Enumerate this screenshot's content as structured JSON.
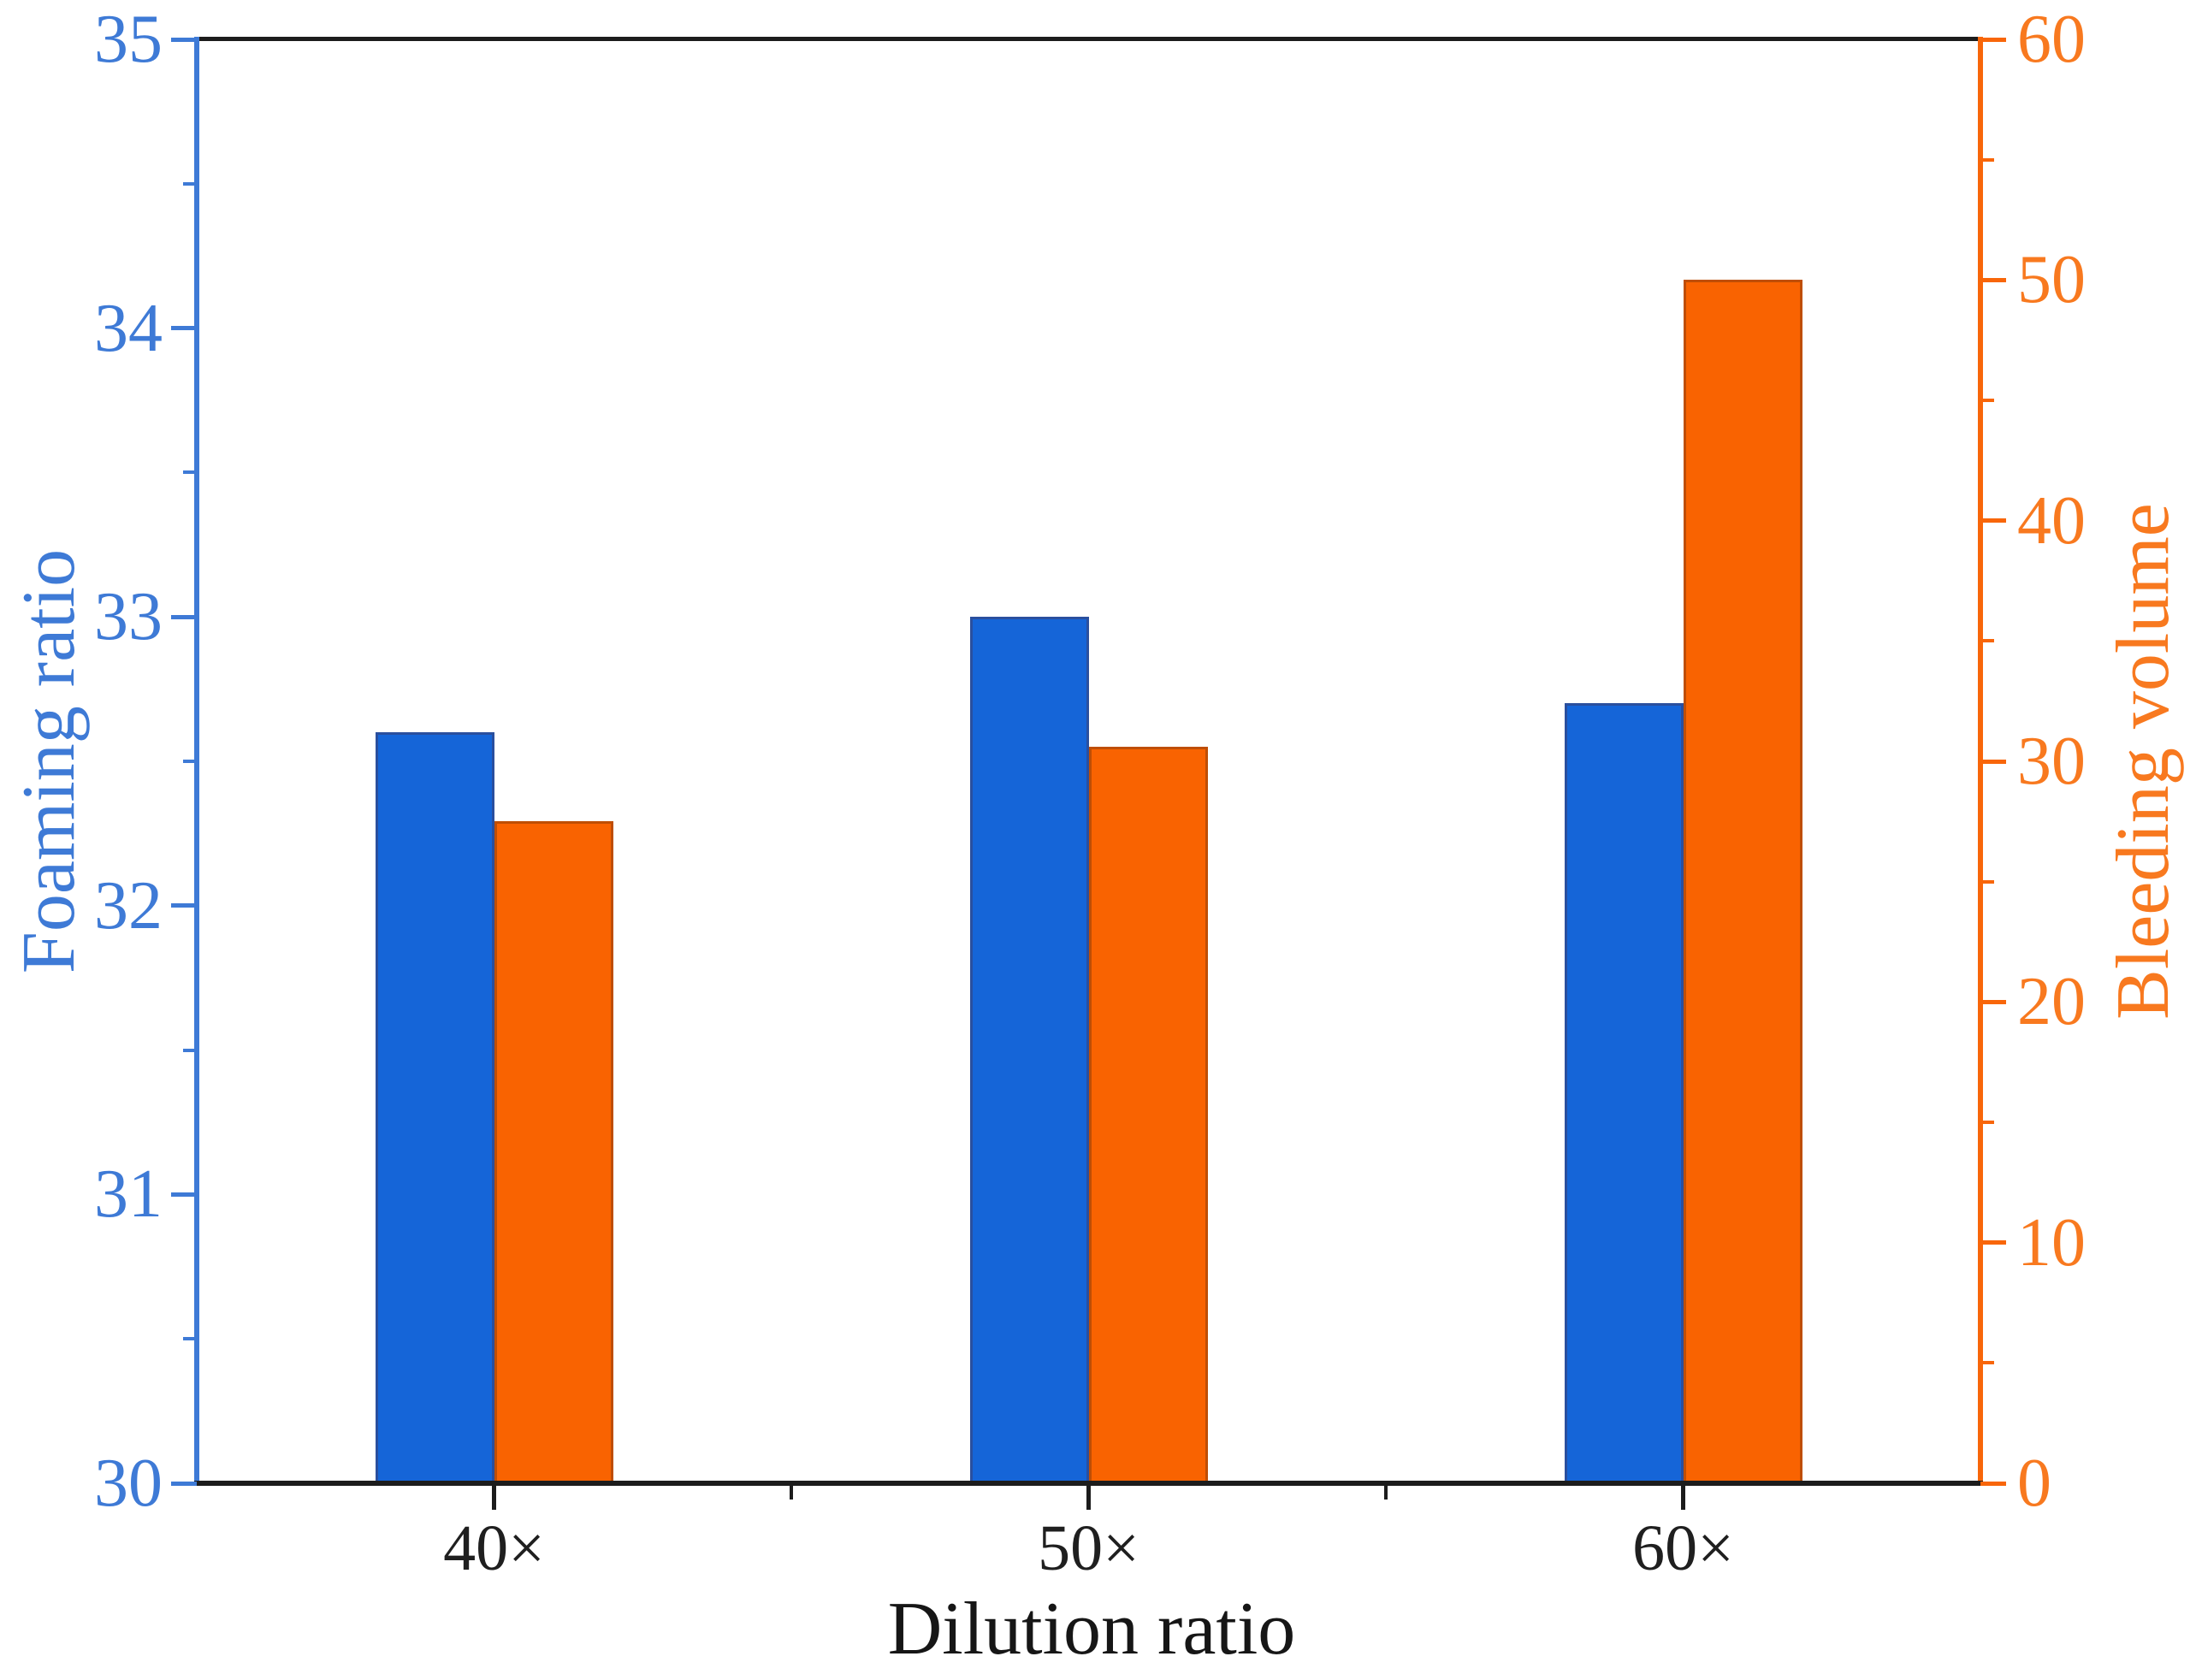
{
  "figure": {
    "background": "#ffffff"
  },
  "chart_data": {
    "type": "bar",
    "title": "",
    "grid": false,
    "legend_visible": false,
    "categories": [
      "40×",
      "50×",
      "60×"
    ],
    "series": [
      {
        "name": "Foaming ratio",
        "axis": "left",
        "color": "#1565d8",
        "edge_color": "#2a4f9e",
        "values": [
          32.6,
          33.0,
          32.7
        ]
      },
      {
        "name": "Bleeding volume",
        "axis": "right",
        "color": "#f96301",
        "edge_color": "#bf4e05",
        "values": [
          27.5,
          30.6,
          50.0
        ]
      }
    ],
    "x_axis": {
      "label": "Dilution ratio",
      "tick_labels": [
        "40×",
        "50×",
        "60×"
      ],
      "line_color": "#1c1c1c",
      "tick_color": "#1c1c1c",
      "label_color": "#161616"
    },
    "left_axis": {
      "label": "Foaming ratio",
      "min": 30,
      "max": 35,
      "major_ticks": [
        35,
        34,
        33,
        32,
        31,
        30
      ],
      "minor_ticks": [
        34.5,
        33.5,
        32.5,
        31.5,
        30.5
      ],
      "line_color": "#3e7ad6",
      "text_color": "#3e7ad6"
    },
    "right_axis": {
      "label": "Bleeding volume",
      "min": 0,
      "max": 60,
      "major_ticks": [
        60,
        50,
        40,
        30,
        20,
        10,
        0
      ],
      "minor_ticks": [
        55,
        45,
        35,
        25,
        15,
        5
      ],
      "line_color": "#f8660a",
      "text_color": "#f8791f"
    }
  }
}
